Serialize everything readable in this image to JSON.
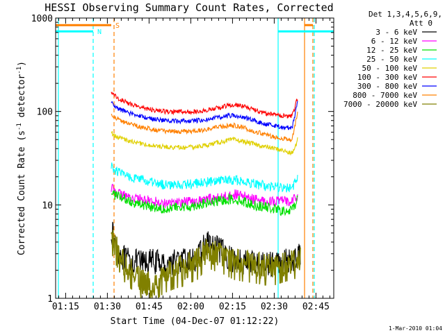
{
  "chart_data": {
    "type": "line",
    "title": "HESSI Observing Summary Count Rates, Corrected",
    "xlabel": "Start Time (04-Dec-07 01:12:22)",
    "ylabel_main": "Corrected Count Rate (s",
    "ylabel_sup1": "-1",
    "ylabel_mid": " detector",
    "ylabel_sup2": "-1",
    "ylabel_end": ")",
    "x_unit": "minutes after 01:12:22 UT",
    "xlim": [
      -1,
      99
    ],
    "ylim": [
      1,
      1000
    ],
    "yscale": "log",
    "x_ticks": [
      {
        "x": 2.6,
        "label": "01:15"
      },
      {
        "x": 17.6,
        "label": "01:30"
      },
      {
        "x": 32.6,
        "label": "01:45"
      },
      {
        "x": 47.6,
        "label": "02:00"
      },
      {
        "x": 62.6,
        "label": "02:15"
      },
      {
        "x": 77.6,
        "label": "02:30"
      },
      {
        "x": 92.6,
        "label": "02:45"
      }
    ],
    "y_ticks": [
      {
        "y": 1,
        "label": "1"
      },
      {
        "y": 10,
        "label": "10"
      },
      {
        "y": 100,
        "label": "100"
      },
      {
        "y": 1000,
        "label": "1000"
      }
    ],
    "legend": {
      "header1": "Det 1,3,4,5,6,9,",
      "header2": "Att 0",
      "placement": "right"
    },
    "series": [
      {
        "name": "3 - 6 keV",
        "color": "#000000",
        "points": [
          [
            19,
            5.5
          ],
          [
            20,
            4.2
          ],
          [
            22,
            3.0
          ],
          [
            24,
            2.6
          ],
          [
            26,
            2.5
          ],
          [
            30,
            2.4
          ],
          [
            34,
            2.5
          ],
          [
            38,
            2.3
          ],
          [
            42,
            2.5
          ],
          [
            46,
            2.5
          ],
          [
            50,
            2.6
          ],
          [
            52,
            3.5
          ],
          [
            54,
            4.0
          ],
          [
            56,
            3.5
          ],
          [
            58,
            3.3
          ],
          [
            60,
            3.0
          ],
          [
            63,
            2.5
          ],
          [
            66,
            2.5
          ],
          [
            70,
            2.4
          ],
          [
            74,
            2.3
          ],
          [
            78,
            2.4
          ],
          [
            82,
            2.5
          ],
          [
            84,
            2.6
          ],
          [
            86,
            2.7
          ],
          [
            87,
            3.0
          ]
        ]
      },
      {
        "name": "6 - 12 keV",
        "color": "#ff00ff",
        "points": [
          [
            19,
            15
          ],
          [
            22,
            13
          ],
          [
            26,
            12
          ],
          [
            30,
            11.5
          ],
          [
            34,
            11
          ],
          [
            38,
            10.5
          ],
          [
            42,
            10.5
          ],
          [
            46,
            11
          ],
          [
            50,
            11
          ],
          [
            54,
            11.5
          ],
          [
            58,
            12
          ],
          [
            61,
            12.5
          ],
          [
            63,
            13
          ],
          [
            66,
            12.5
          ],
          [
            70,
            11.5
          ],
          [
            74,
            11
          ],
          [
            78,
            11
          ],
          [
            81,
            11
          ],
          [
            83,
            11
          ],
          [
            84,
            11.5
          ],
          [
            86,
            12
          ]
        ]
      },
      {
        "name": "12 - 25 keV",
        "color": "#00e000",
        "points": [
          [
            19,
            14
          ],
          [
            20,
            13
          ],
          [
            22,
            12
          ],
          [
            26,
            11
          ],
          [
            30,
            10
          ],
          [
            34,
            9.5
          ],
          [
            38,
            9.2
          ],
          [
            42,
            9.3
          ],
          [
            46,
            9.5
          ],
          [
            50,
            10
          ],
          [
            54,
            10.5
          ],
          [
            58,
            11
          ],
          [
            61,
            11.5
          ],
          [
            63,
            11.5
          ],
          [
            66,
            11
          ],
          [
            70,
            10
          ],
          [
            74,
            9.5
          ],
          [
            78,
            9
          ],
          [
            81,
            8.5
          ],
          [
            83,
            8.5
          ],
          [
            84,
            9
          ],
          [
            85,
            10
          ],
          [
            86,
            12
          ]
        ]
      },
      {
        "name": "25 - 50 keV",
        "color": "#00ffff",
        "points": [
          [
            19,
            26
          ],
          [
            20,
            24
          ],
          [
            22,
            22
          ],
          [
            26,
            20
          ],
          [
            30,
            18.5
          ],
          [
            34,
            17
          ],
          [
            38,
            16.5
          ],
          [
            42,
            16.5
          ],
          [
            46,
            16.5
          ],
          [
            50,
            17
          ],
          [
            54,
            17.5
          ],
          [
            58,
            18
          ],
          [
            61,
            18.5
          ],
          [
            63,
            18.5
          ],
          [
            66,
            18
          ],
          [
            70,
            17
          ],
          [
            74,
            16
          ],
          [
            78,
            15.5
          ],
          [
            81,
            15
          ],
          [
            83,
            15
          ],
          [
            84,
            15.5
          ],
          [
            85,
            17
          ],
          [
            86,
            20
          ]
        ]
      },
      {
        "name": "50 - 100 keV",
        "color": "#e0d000",
        "points": [
          [
            19,
            60
          ],
          [
            20,
            55
          ],
          [
            22,
            52
          ],
          [
            26,
            48
          ],
          [
            30,
            45
          ],
          [
            34,
            43
          ],
          [
            38,
            42
          ],
          [
            42,
            41
          ],
          [
            46,
            41
          ],
          [
            50,
            42
          ],
          [
            54,
            44
          ],
          [
            58,
            47
          ],
          [
            61,
            49
          ],
          [
            63,
            50
          ],
          [
            66,
            48
          ],
          [
            70,
            45
          ],
          [
            74,
            42
          ],
          [
            78,
            40
          ],
          [
            81,
            38
          ],
          [
            83,
            36
          ],
          [
            84,
            36
          ],
          [
            85,
            40
          ],
          [
            86,
            50
          ]
        ]
      },
      {
        "name": "100 - 300 keV",
        "color": "#ff0000",
        "points": [
          [
            19,
            165
          ],
          [
            20,
            150
          ],
          [
            22,
            135
          ],
          [
            26,
            120
          ],
          [
            30,
            110
          ],
          [
            34,
            104
          ],
          [
            38,
            100
          ],
          [
            42,
            99
          ],
          [
            46,
            99
          ],
          [
            50,
            100
          ],
          [
            54,
            104
          ],
          [
            58,
            110
          ],
          [
            61,
            116
          ],
          [
            63,
            118
          ],
          [
            66,
            115
          ],
          [
            70,
            105
          ],
          [
            74,
            96
          ],
          [
            78,
            92
          ],
          [
            81,
            90
          ],
          [
            83,
            88
          ],
          [
            84,
            90
          ],
          [
            85,
            110
          ],
          [
            86,
            140
          ]
        ]
      },
      {
        "name": "300 - 800 keV",
        "color": "#0000ff",
        "points": [
          [
            19,
            125
          ],
          [
            20,
            115
          ],
          [
            22,
            105
          ],
          [
            26,
            95
          ],
          [
            30,
            88
          ],
          [
            34,
            83
          ],
          [
            38,
            80
          ],
          [
            42,
            79
          ],
          [
            46,
            79
          ],
          [
            50,
            80
          ],
          [
            54,
            83
          ],
          [
            58,
            87
          ],
          [
            61,
            90
          ],
          [
            63,
            91
          ],
          [
            66,
            88
          ],
          [
            70,
            81
          ],
          [
            74,
            74
          ],
          [
            78,
            70
          ],
          [
            81,
            68
          ],
          [
            83,
            67
          ],
          [
            84,
            66
          ],
          [
            85,
            90
          ],
          [
            86,
            130
          ]
        ]
      },
      {
        "name": "800 - 7000 keV",
        "color": "#ff8000",
        "points": [
          [
            19,
            95
          ],
          [
            20,
            88
          ],
          [
            22,
            80
          ],
          [
            26,
            73
          ],
          [
            30,
            68
          ],
          [
            34,
            64
          ],
          [
            38,
            62
          ],
          [
            42,
            61
          ],
          [
            46,
            61
          ],
          [
            50,
            62
          ],
          [
            54,
            65
          ],
          [
            58,
            68
          ],
          [
            61,
            70
          ],
          [
            63,
            71
          ],
          [
            66,
            68
          ],
          [
            70,
            62
          ],
          [
            74,
            57
          ],
          [
            78,
            53
          ],
          [
            81,
            51
          ],
          [
            83,
            50
          ],
          [
            84,
            49
          ],
          [
            85,
            70
          ],
          [
            86,
            100
          ]
        ]
      },
      {
        "name": "7000 - 20000 keV",
        "color": "#808000",
        "points": [
          [
            19,
            5.0
          ],
          [
            20,
            4.0
          ],
          [
            22,
            3.0
          ],
          [
            24,
            2.3
          ],
          [
            26,
            2.0
          ],
          [
            28,
            1.8
          ],
          [
            30,
            1.5
          ],
          [
            32,
            1.4
          ],
          [
            34,
            1.4
          ],
          [
            36,
            1.6
          ],
          [
            38,
            1.8
          ],
          [
            42,
            2.0
          ],
          [
            46,
            2.2
          ],
          [
            50,
            2.5
          ],
          [
            52,
            3.0
          ],
          [
            54,
            3.3
          ],
          [
            56,
            3.1
          ],
          [
            58,
            3.0
          ],
          [
            60,
            2.8
          ],
          [
            63,
            2.5
          ],
          [
            66,
            2.4
          ],
          [
            70,
            2.3
          ],
          [
            74,
            2.2
          ],
          [
            78,
            2.2
          ],
          [
            80,
            2.3
          ],
          [
            82,
            2.4
          ],
          [
            84,
            2.5
          ],
          [
            86,
            2.6
          ],
          [
            87,
            2.8
          ]
        ]
      }
    ],
    "markers": [
      {
        "x": 0.0,
        "color": "#00ffff",
        "style": "solid"
      },
      {
        "x": 12.5,
        "color": "#00ffff",
        "style": "dashed"
      },
      {
        "x": 20.0,
        "color": "#ff8000",
        "style": "dashed"
      },
      {
        "x": 79.0,
        "color": "#00ffff",
        "style": "solid"
      },
      {
        "x": 88.5,
        "color": "#ff8000",
        "style": "solid"
      },
      {
        "x": 91.5,
        "color": "#ff8000",
        "style": "dashed"
      },
      {
        "x": 92.0,
        "color": "#00ffff",
        "style": "dashed"
      }
    ],
    "status_bars": [
      {
        "label": "N",
        "color": "#00ffff",
        "x_start": -1,
        "x_end": 12.5,
        "y": 720,
        "label_x": 14
      },
      {
        "label": "S",
        "color": "#ff8000",
        "x_start": -1,
        "x_end": 19,
        "y": 840,
        "label_x": 20.5
      },
      {
        "label": "",
        "color": "#00ffff",
        "x_start": 79,
        "x_end": 99,
        "y": 720,
        "label_x": 0
      },
      {
        "label": "",
        "color": "#ff8000",
        "x_start": 88.5,
        "x_end": 91.5,
        "y": 840,
        "label_x": 0
      }
    ]
  },
  "timestamp": "1-Mar-2010 01:04"
}
